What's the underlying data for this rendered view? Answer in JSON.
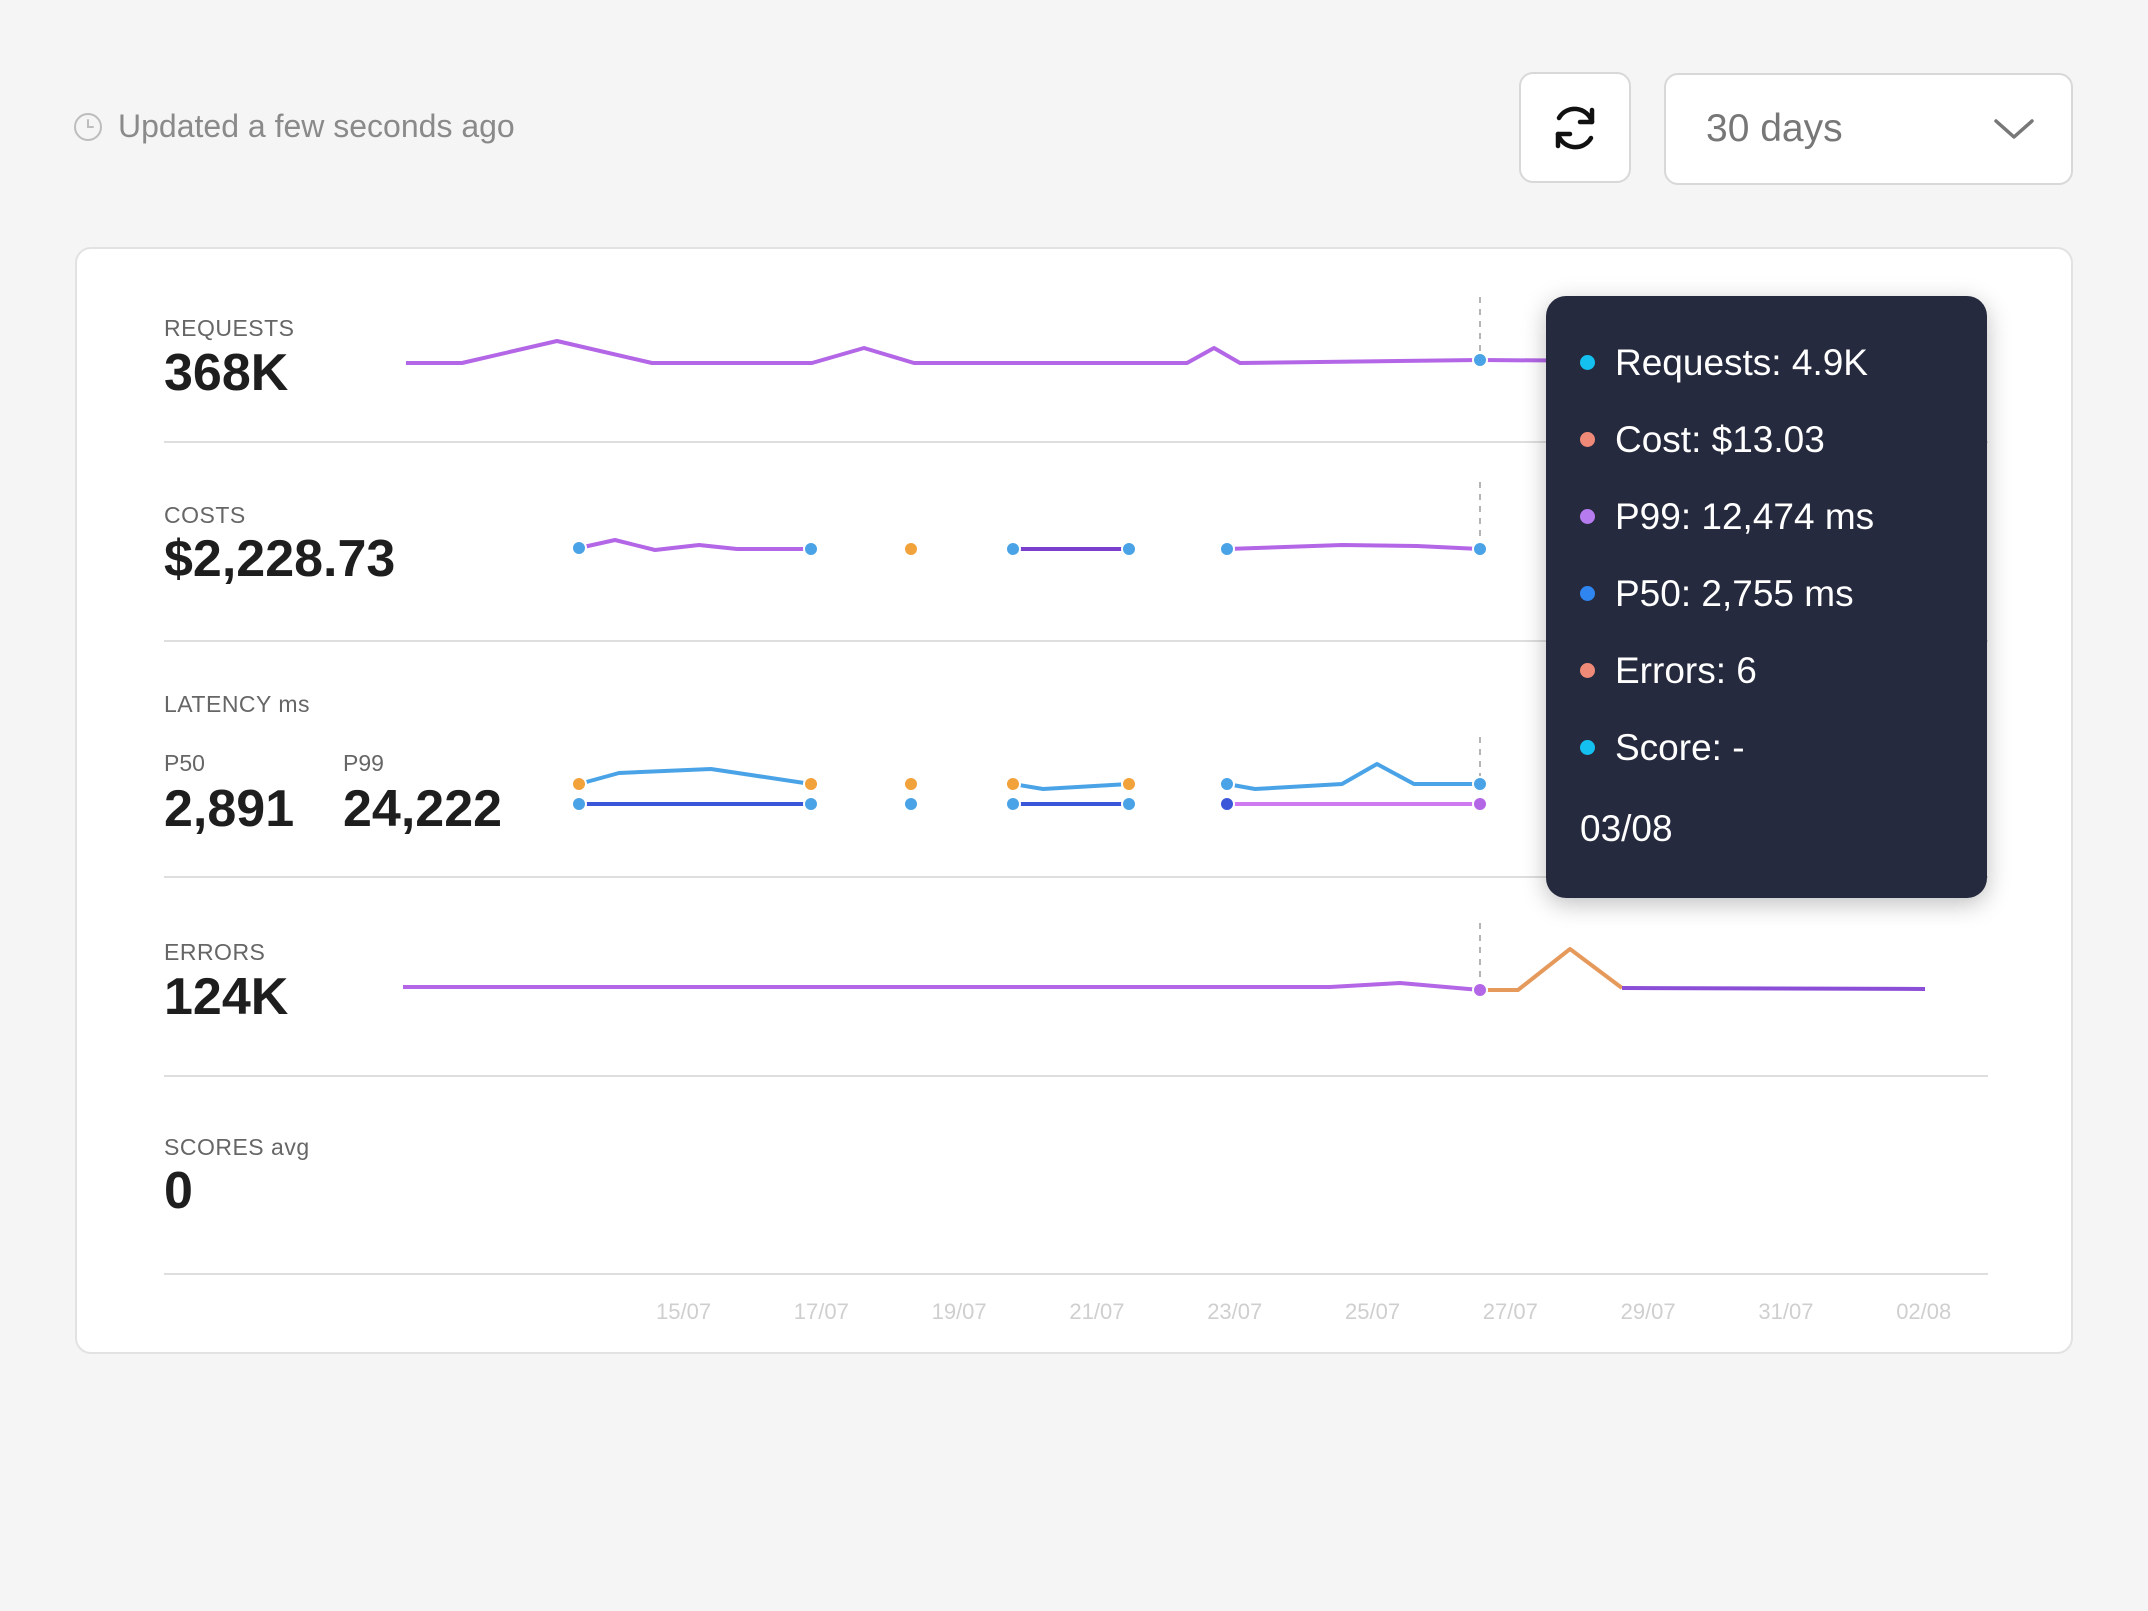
{
  "header": {
    "updated_text": "Updated a few seconds ago",
    "range_value": "30 days"
  },
  "rows": {
    "requests": {
      "label": "REQUESTS",
      "value": "368K"
    },
    "costs": {
      "label": "COSTS",
      "value": "$2,228.73"
    },
    "latency": {
      "label": "LATENCY ms",
      "p50_label": "P50",
      "p50_value": "2,891",
      "p99_label": "P99",
      "p99_value": "24,222"
    },
    "errors": {
      "label": "ERRORS",
      "value": "124K"
    },
    "scores": {
      "label": "SCORES avg",
      "value": "0"
    }
  },
  "tooltip": {
    "items": [
      {
        "text": "Requests: 4.9K",
        "color": "#14c0f0"
      },
      {
        "text": "Cost: $13.03",
        "color": "#f08a78"
      },
      {
        "text": "P99: 12,474 ms",
        "color": "#b77bf0"
      },
      {
        "text": "P50: 2,755 ms",
        "color": "#2f86f0"
      },
      {
        "text": "Errors: 6",
        "color": "#f08a78"
      },
      {
        "text": "Score: -",
        "color": "#14c0f0"
      }
    ],
    "date": "03/08"
  },
  "chart_data": {
    "type": "line",
    "x_ticks": [
      "15/07",
      "17/07",
      "19/07",
      "21/07",
      "23/07",
      "25/07",
      "27/07",
      "29/07",
      "31/07",
      "02/08"
    ],
    "highlight_date": "03/08",
    "colors": {
      "primary": "#b366e6",
      "p50": "#3b57d9",
      "p99": "#4aa3e6",
      "point": "#4aa3e6",
      "gap_point": "#f2a23a",
      "error_peak": "#e59a5c"
    }
  }
}
